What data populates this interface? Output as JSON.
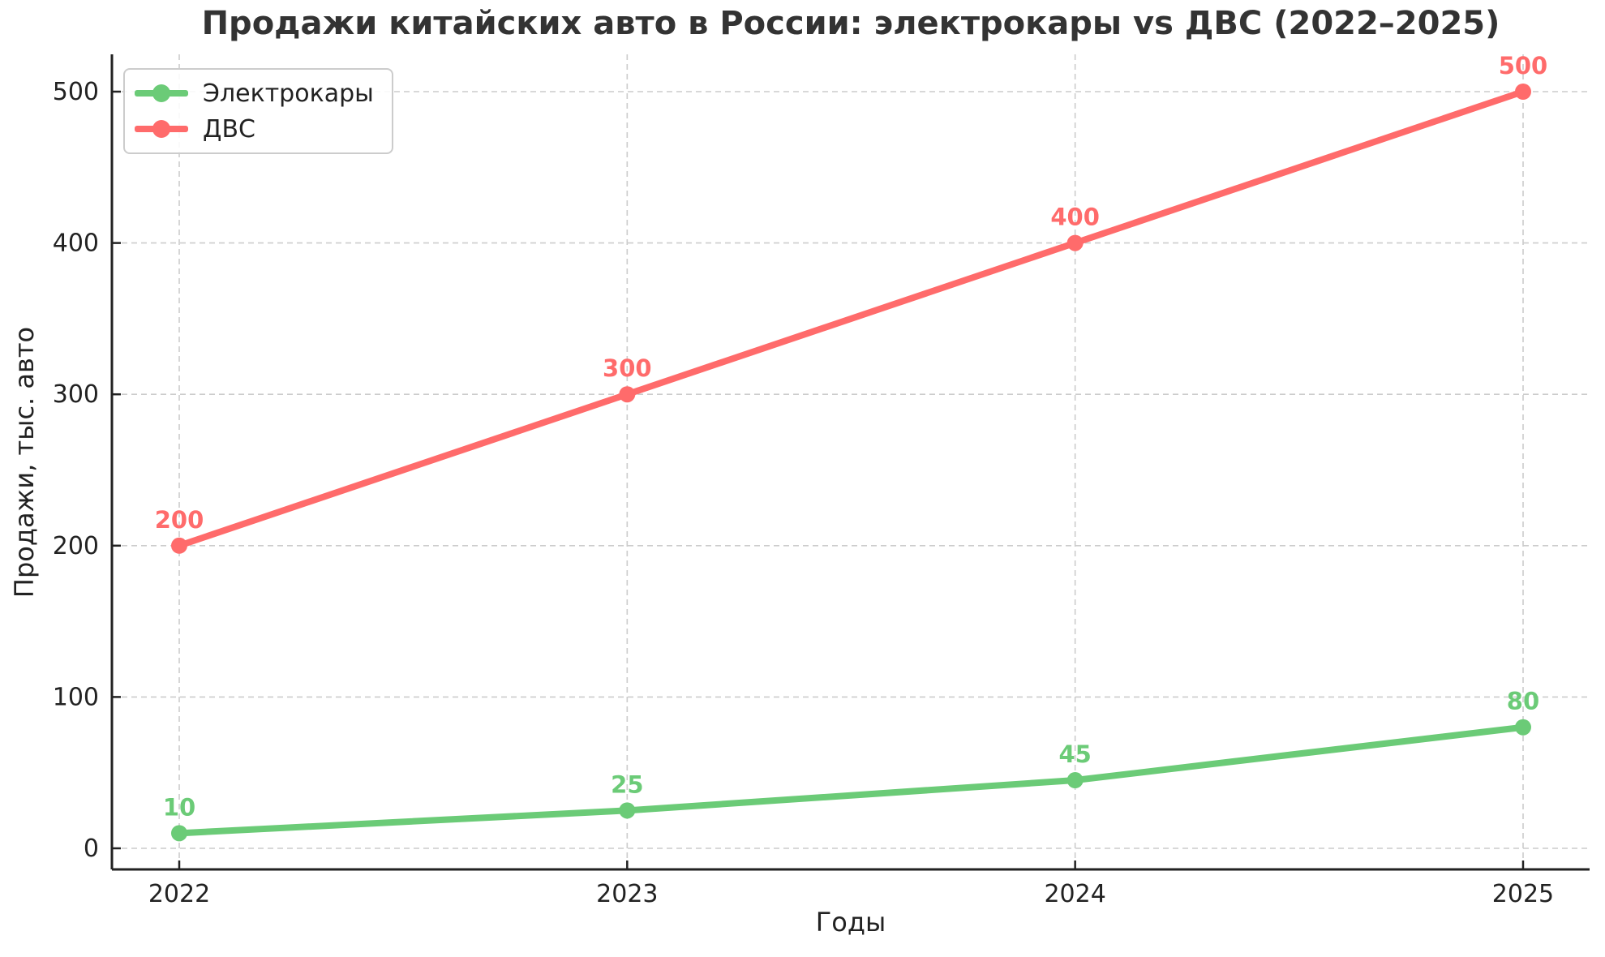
{
  "title": "Продажи китайских авто в России: электрокары vs ДВС (2022–2025)",
  "chart_data": {
    "type": "line",
    "title": "Продажи китайских авто в России: электрокары vs ДВС (2022–2025)",
    "xlabel": "Годы",
    "ylabel": "Продажи, тыс. авто",
    "categories": [
      "2022",
      "2023",
      "2024",
      "2025"
    ],
    "x": [
      2022,
      2023,
      2024,
      2025
    ],
    "series": [
      {
        "name": "Электрокары",
        "color": "#6BCB77",
        "values": [
          10,
          25,
          45,
          80
        ]
      },
      {
        "name": "ДВС",
        "color": "#FF6B6B",
        "values": [
          200,
          300,
          400,
          500
        ]
      }
    ],
    "yticks": [
      0,
      100,
      200,
      300,
      400,
      500
    ],
    "ylim": [
      -15,
      525
    ],
    "grid": true,
    "grid_style": "dashed",
    "point_labels": true,
    "legend_position": "upper left"
  },
  "colors": {
    "electric_series": "#6BCB77",
    "ice_series": "#FF6B6B",
    "grid": "#cccccc",
    "axis": "#222222",
    "title_text": "#333333",
    "background": "#ffffff"
  }
}
